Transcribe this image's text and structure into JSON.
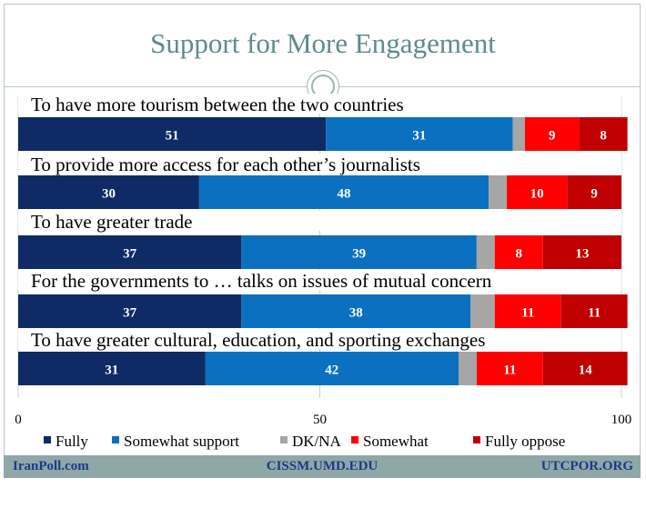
{
  "slide": {
    "title": "Support for More Engagement"
  },
  "footer": {
    "left": "IranPoll.com",
    "center": "CISSM.UMD.EDU",
    "right": "UTCPOR.ORG"
  },
  "colors": {
    "fully": "#0e2b65",
    "somewhat_support": "#0c70c0",
    "dk_na": "#a6a6a6",
    "somewhat_oppose": "#ff0000",
    "fully_oppose": "#c00000",
    "title": "#5f8a8b",
    "footer_bg": "#8fa7a6",
    "footer_text": "#1a3a8a"
  },
  "chart_data": {
    "type": "bar",
    "orientation": "horizontal",
    "stacked": true,
    "title": "Support for More Engagement",
    "categories": [
      "To have more tourism between the two countries",
      "To provide more access for each other’s journalists",
      "To have greater trade",
      "For the governments to … talks on issues of mutual concern",
      "To have greater cultural, education, and sporting exchanges"
    ],
    "series": [
      {
        "name": "Fully",
        "color_key": "fully",
        "values": [
          51,
          30,
          37,
          37,
          31
        ]
      },
      {
        "name": "Somewhat support",
        "color_key": "somewhat_support",
        "values": [
          31,
          48,
          39,
          38,
          42
        ]
      },
      {
        "name": "DK/NA",
        "color_key": "dk_na",
        "values": [
          2,
          3,
          3,
          4,
          3
        ]
      },
      {
        "name": "Somewhat",
        "color_key": "somewhat_oppose",
        "values": [
          9,
          10,
          8,
          11,
          11
        ]
      },
      {
        "name": "Fully oppose",
        "color_key": "fully_oppose",
        "values": [
          8,
          9,
          13,
          11,
          14
        ]
      }
    ],
    "data_labels": {
      "hidden_below": 5
    },
    "xlim": [
      0,
      100
    ],
    "xticks": [
      0,
      50,
      100
    ],
    "grid": true,
    "legend_position": "bottom"
  }
}
